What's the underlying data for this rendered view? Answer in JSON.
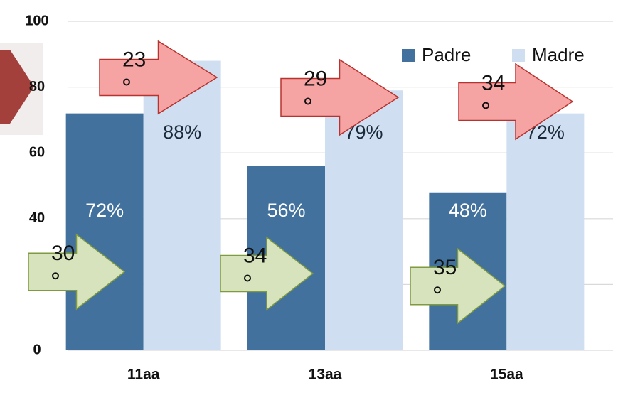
{
  "chart_data": {
    "type": "bar",
    "categories": [
      "11aa",
      "13aa",
      "15aa"
    ],
    "series": [
      {
        "name": "Padre",
        "color": "#41719c",
        "values": [
          72,
          56,
          48
        ],
        "value_labels": [
          "72%",
          "56%",
          "48%"
        ]
      },
      {
        "name": "Madre",
        "color": "#cfdff1",
        "values": [
          88,
          79,
          72
        ],
        "value_labels": [
          "88%",
          "79%",
          "72%"
        ]
      }
    ],
    "ylim": [
      0,
      100
    ],
    "yticks": [
      0,
      20,
      40,
      60,
      80,
      100
    ],
    "grid": true,
    "legend": "top-right",
    "annotations": [
      {
        "text": "23",
        "color": "#f5a3a3"
      },
      {
        "text": "29",
        "color": "#f5a3a3"
      },
      {
        "text": "34",
        "color": "#f5a3a3"
      },
      {
        "text": "30",
        "color": "#d6e3bc"
      },
      {
        "text": "34",
        "color": "#d6e3bc"
      },
      {
        "text": "35",
        "color": "#d6e3bc"
      }
    ]
  }
}
